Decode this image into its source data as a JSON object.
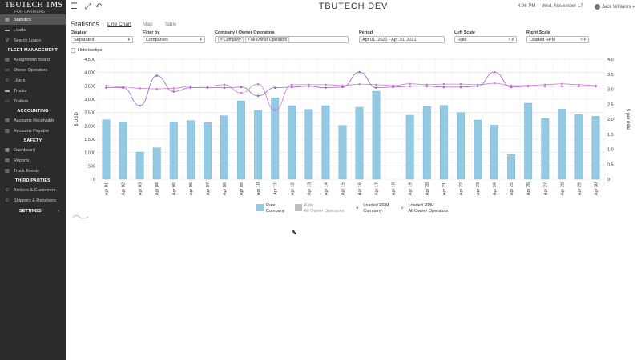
{
  "brand": {
    "title": "TBUTECH TMS",
    "subtitle": "FOR CARRIERS"
  },
  "sidebar": {
    "items": [
      {
        "label": "Statistics",
        "icon": "chart-icon",
        "active": true
      },
      {
        "label": "Loads",
        "icon": "truck-icon"
      },
      {
        "label": "Search Loads",
        "icon": "search-icon"
      }
    ],
    "fleet_title": "FLEET MANAGEMENT",
    "fleet": [
      {
        "label": "Assignment Board",
        "icon": "board-icon"
      },
      {
        "label": "Owner Operators",
        "icon": "operator-icon"
      },
      {
        "label": "Users",
        "icon": "users-icon"
      },
      {
        "label": "Trucks",
        "icon": "truck-icon"
      },
      {
        "label": "Trailers",
        "icon": "trailer-icon"
      }
    ],
    "accounting_title": "ACCOUNTING",
    "accounting": [
      {
        "label": "Accounts Receivable",
        "icon": "receivable-icon"
      },
      {
        "label": "Accounts Payable",
        "icon": "payable-icon"
      }
    ],
    "safety_title": "SAFETY",
    "safety": [
      {
        "label": "Dashboard",
        "icon": "dashboard-icon"
      },
      {
        "label": "Reports",
        "icon": "reports-icon"
      },
      {
        "label": "Truck Events",
        "icon": "events-icon"
      }
    ],
    "third_title": "THIRD PARTIES",
    "third": [
      {
        "label": "Brokers & Customers",
        "icon": "brokers-icon"
      },
      {
        "label": "Shippers & Receivers",
        "icon": "shippers-icon"
      }
    ],
    "settings_label": "SETTINGS"
  },
  "topbar": {
    "title": "TBUTECH DEV",
    "time": "4:06 PM",
    "date": "Wed, November 17",
    "user": "Jack Williams"
  },
  "page": {
    "title": "Statistics",
    "tabs": [
      "Line Chart",
      "Map",
      "Table"
    ],
    "active_tab": "Line Chart"
  },
  "filters": {
    "display": {
      "label": "Display",
      "value": "Separated"
    },
    "filter_by": {
      "label": "Filter by",
      "value": "Companies"
    },
    "company": {
      "label": "Company / Owner Operators",
      "chips": [
        "× Company",
        "× All Owner Operators"
      ]
    },
    "period": {
      "label": "Period",
      "value": "Apr 01, 2021 - Apr 30, 2021"
    },
    "left_scale": {
      "label": "Left Scale",
      "value": "Rate"
    },
    "right_scale": {
      "label": "Right Scale",
      "value": "Loaded RPM"
    },
    "hide_tooltips": "Hide tooltips"
  },
  "colors": {
    "bar": "#92c9e3",
    "bar_stroke": "#6fb0d0",
    "line": "#a25fc9",
    "line2": "#d07ad6",
    "accent_bar2": "#bdbdbd"
  },
  "chart_data": {
    "type": "bar",
    "categories": [
      "Apr 01",
      "Apr 02",
      "Apr 03",
      "Apr 04",
      "Apr 05",
      "Apr 06",
      "Apr 07",
      "Apr 08",
      "Apr 09",
      "Apr 10",
      "Apr 11",
      "Apr 12",
      "Apr 13",
      "Apr 14",
      "Apr 15",
      "Apr 16",
      "Apr 17",
      "Apr 18",
      "Apr 19",
      "Apr 20",
      "Apr 21",
      "Apr 22",
      "Apr 23",
      "Apr 24",
      "Apr 25",
      "Apr 26",
      "Apr 27",
      "Apr 28",
      "Apr 29",
      "Apr 30"
    ],
    "ylabel": "$ USD",
    "y2label": "$ per mile",
    "ylim": [
      0,
      4500
    ],
    "y2lim": [
      0,
      4.0
    ],
    "yticks": [
      "0",
      "500",
      "1,000",
      "1,500",
      "2,000",
      "2,500",
      "3,000",
      "3,500",
      "4,000",
      "4,500"
    ],
    "y2ticks": [
      "0",
      "0.5",
      "1.0",
      "1.5",
      "2.0",
      "2.5",
      "3.0",
      "3.5",
      "4.0"
    ],
    "series": [
      {
        "name": "Rate",
        "sub": "Company",
        "type": "bar",
        "values": [
          2230,
          2150,
          1020,
          1180,
          2150,
          2200,
          2120,
          2380,
          2940,
          2580,
          3050,
          2760,
          2620,
          2760,
          2020,
          2700,
          3300,
          null,
          2400,
          2730,
          2770,
          2500,
          2220,
          2030,
          920,
          2850,
          2280,
          2630,
          2420,
          2360
        ]
      },
      {
        "name": "Loaded RPM",
        "sub": "Company",
        "type": "line",
        "values": [
          3.05,
          3.05,
          2.45,
          3.45,
          2.92,
          3.05,
          3.05,
          3.05,
          3.07,
          2.78,
          3.05,
          3.07,
          3.1,
          3.05,
          3.07,
          3.57,
          3.05,
          3.07,
          3.1,
          3.1,
          3.07,
          3.07,
          3.1,
          3.57,
          3.07,
          3.1,
          3.1,
          3.1,
          3.1,
          3.1
        ]
      },
      {
        "name": "Loaded RPM",
        "sub": "All Owner Operators",
        "type": "line",
        "values": [
          3.12,
          3.07,
          3.03,
          3.01,
          3.03,
          3.1,
          3.1,
          3.15,
          2.88,
          3.17,
          2.3,
          3.15,
          3.15,
          3.15,
          3.12,
          3.17,
          3.15,
          3.12,
          3.18,
          3.15,
          3.17,
          3.17,
          3.15,
          3.2,
          3.12,
          3.12,
          3.15,
          3.18,
          3.15,
          3.12
        ]
      }
    ],
    "legend": [
      {
        "name": "Rate",
        "sub": "Company",
        "kind": "bar",
        "muted": false
      },
      {
        "name": "Rate",
        "sub": "All Owner Operators",
        "kind": "bar",
        "muted": true
      },
      {
        "name": "Loaded RPM",
        "sub": "Company",
        "kind": "line",
        "muted": false
      },
      {
        "name": "Loaded RPM",
        "sub": "All Owner Operators",
        "kind": "line",
        "muted": false
      }
    ],
    "grid": true,
    "legend_position": "bottom"
  }
}
